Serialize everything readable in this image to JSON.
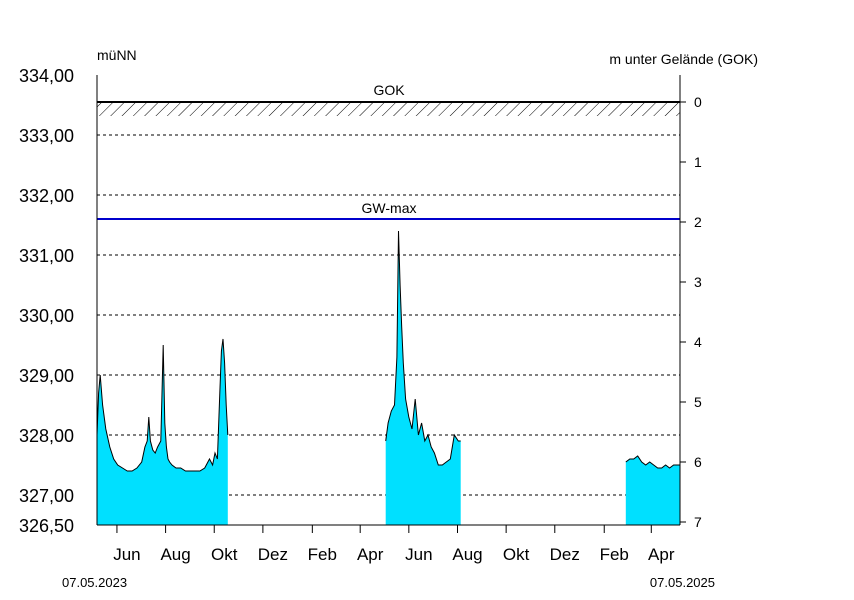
{
  "chart_data": {
    "type": "area",
    "left_unit": "müNN",
    "right_unit": "m unter Gelände (GOK)",
    "start_date_label": "07.05.2023",
    "end_date_label": "07.05.2025",
    "ylim": [
      326.5,
      334.0
    ],
    "right_ylim": [
      0,
      7
    ],
    "gok_level": 333.55,
    "gok_label": "GOK",
    "gwmax_level": 331.6,
    "gwmax_label": "GW-max",
    "left_ticks": [
      "326,50",
      "327,00",
      "328,00",
      "329,00",
      "330,00",
      "331,00",
      "332,00",
      "333,00",
      "334,00"
    ],
    "right_ticks": [
      "0",
      "1",
      "2",
      "3",
      "4",
      "5",
      "6",
      "7"
    ],
    "month_labels": [
      "Jun",
      "Aug",
      "Okt",
      "Dez",
      "Feb",
      "Apr",
      "Jun",
      "Aug",
      "Okt",
      "Dez",
      "Feb",
      "Apr"
    ],
    "grid": true,
    "fill_color": "#00e0ff",
    "line_color": "#000000",
    "gwmax_color": "#0000cc",
    "series": [
      {
        "x": [
          "2023-05-07",
          "2023-05-09",
          "2023-05-11",
          "2023-05-14",
          "2023-05-18",
          "2023-05-23",
          "2023-05-28",
          "2023-06-02",
          "2023-06-08",
          "2023-06-14",
          "2023-06-20",
          "2023-06-26",
          "2023-07-02",
          "2023-07-06",
          "2023-07-09",
          "2023-07-11",
          "2023-07-13",
          "2023-07-16",
          "2023-07-19",
          "2023-07-22",
          "2023-07-26",
          "2023-07-29",
          "2023-07-31",
          "2023-08-02",
          "2023-08-04",
          "2023-08-06",
          "2023-08-09",
          "2023-08-14",
          "2023-08-20",
          "2023-08-26",
          "2023-09-01",
          "2023-09-07",
          "2023-09-13",
          "2023-09-19",
          "2023-09-25",
          "2023-09-29",
          "2023-10-02",
          "2023-10-05",
          "2023-10-08",
          "2023-10-10",
          "2023-10-12",
          "2023-10-14",
          "2023-10-16",
          "2023-10-18",
          "2023-10-20",
          "2023-10-22",
          "2023-10-25",
          "2023-10-28",
          "2023-10-31"
        ],
        "y": [
          328.0,
          328.7,
          329.0,
          328.5,
          328.1,
          327.8,
          327.6,
          327.5,
          327.45,
          327.4,
          327.4,
          327.45,
          327.55,
          327.8,
          327.9,
          328.3,
          327.9,
          327.75,
          327.7,
          327.8,
          327.9,
          329.5,
          328.2,
          327.8,
          327.6,
          327.55,
          327.5,
          327.45,
          327.45,
          327.4,
          327.4,
          327.4,
          327.4,
          327.45,
          327.6,
          327.5,
          327.7,
          327.6,
          328.7,
          329.4,
          329.6,
          329.2,
          328.5,
          328.0,
          null,
          null,
          null,
          null,
          null
        ]
      },
      {
        "x": [
          "2024-05-03",
          "2024-05-06",
          "2024-05-10",
          "2024-05-14",
          "2024-05-17",
          "2024-05-19",
          "2024-05-21",
          "2024-05-23",
          "2024-05-25",
          "2024-05-28",
          "2024-06-01",
          "2024-06-05",
          "2024-06-09",
          "2024-06-13",
          "2024-06-17",
          "2024-06-21",
          "2024-06-25",
          "2024-06-29",
          "2024-07-03",
          "2024-07-08",
          "2024-07-13",
          "2024-07-18",
          "2024-07-23",
          "2024-07-28",
          "2024-08-02",
          "2024-08-05"
        ],
        "y": [
          327.9,
          328.2,
          328.4,
          328.5,
          329.3,
          331.4,
          330.5,
          329.8,
          329.2,
          328.6,
          328.3,
          328.1,
          328.6,
          328.0,
          328.2,
          327.9,
          328.0,
          327.8,
          327.7,
          327.5,
          327.5,
          327.55,
          327.6,
          328.0,
          327.9,
          327.9
        ]
      },
      {
        "x": [
          "2025-02-28",
          "2025-03-05",
          "2025-03-10",
          "2025-03-15",
          "2025-03-20",
          "2025-03-25",
          "2025-03-30",
          "2025-04-04",
          "2025-04-09",
          "2025-04-14",
          "2025-04-19",
          "2025-04-24",
          "2025-04-29",
          "2025-05-04",
          "2025-05-07"
        ],
        "y": [
          327.55,
          327.6,
          327.6,
          327.65,
          327.55,
          327.5,
          327.55,
          327.5,
          327.45,
          327.45,
          327.5,
          327.45,
          327.5,
          327.5,
          327.5
        ]
      }
    ]
  }
}
